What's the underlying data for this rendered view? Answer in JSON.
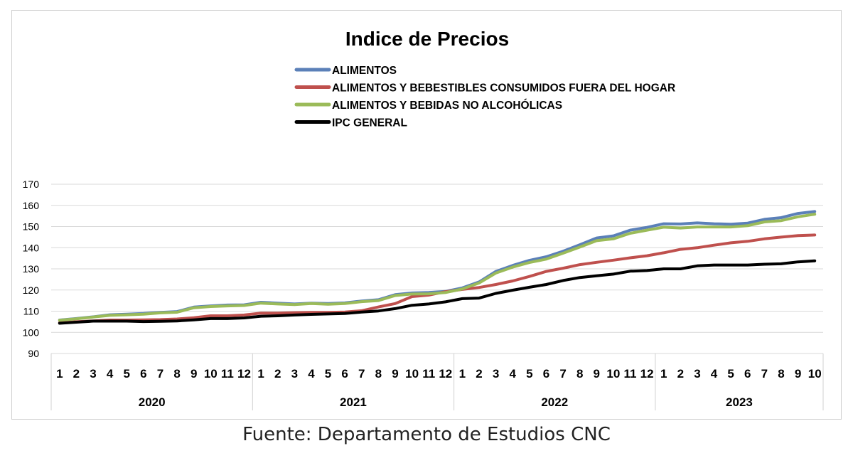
{
  "source_note": "Fuente: Departamento de Estudios CNC",
  "chart_data": {
    "type": "line",
    "title": "Indice de Precios",
    "xlabel": "",
    "ylabel": "",
    "ylim": [
      90,
      170
    ],
    "yticks": [
      90,
      100,
      110,
      120,
      130,
      140,
      150,
      160,
      170
    ],
    "grid": true,
    "legend_position": "top",
    "x_months": [
      "1",
      "2",
      "3",
      "4",
      "5",
      "6",
      "7",
      "8",
      "9",
      "10",
      "11",
      "12",
      "1",
      "2",
      "3",
      "4",
      "5",
      "6",
      "7",
      "8",
      "9",
      "10",
      "11",
      "12",
      "1",
      "2",
      "3",
      "4",
      "5",
      "6",
      "7",
      "8",
      "9",
      "10",
      "11",
      "12",
      "1",
      "2",
      "3",
      "4",
      "5",
      "6",
      "7",
      "8",
      "9",
      "10"
    ],
    "x_years": [
      {
        "label": "2020",
        "count": 12
      },
      {
        "label": "2021",
        "count": 12
      },
      {
        "label": "2022",
        "count": 12
      },
      {
        "label": "2023",
        "count": 10
      }
    ],
    "series": [
      {
        "name": "ALIMENTOS",
        "color": "#5b80b8",
        "values": [
          105.8,
          106.5,
          107.3,
          108.3,
          108.6,
          108.9,
          109.4,
          109.8,
          111.9,
          112.5,
          112.9,
          113.0,
          114.2,
          113.8,
          113.4,
          113.8,
          113.6,
          113.9,
          114.8,
          115.4,
          117.8,
          118.6,
          118.8,
          119.3,
          121.0,
          123.8,
          128.8,
          131.6,
          134.0,
          135.7,
          138.3,
          141.4,
          144.6,
          145.6,
          148.3,
          149.6,
          151.3,
          151.2,
          151.7,
          151.3,
          151.1,
          151.6,
          153.4,
          154.2,
          156.2,
          157.1
        ]
      },
      {
        "name": "ALIMENTOS Y BEBESTIBLES CONSUMIDOS FUERA DEL HOGAR",
        "color": "#bf504d",
        "values": [
          104.5,
          105.0,
          105.4,
          105.8,
          105.8,
          105.9,
          106.0,
          106.3,
          106.9,
          107.8,
          107.8,
          108.2,
          109.1,
          109.1,
          109.3,
          109.4,
          109.4,
          109.6,
          110.2,
          112.0,
          113.6,
          116.9,
          117.6,
          119.2,
          120.3,
          121.2,
          122.6,
          124.3,
          126.4,
          128.8,
          130.3,
          132.0,
          133.1,
          134.1,
          135.2,
          136.2,
          137.6,
          139.2,
          140.0,
          141.2,
          142.3,
          143.0,
          144.2,
          145.0,
          145.7,
          146.0
        ]
      },
      {
        "name": "ALIMENTOS Y BEBIDAS NO ALCOHÓLICAS",
        "color": "#9bbb59",
        "values": [
          105.7,
          106.4,
          107.2,
          108.0,
          108.3,
          108.6,
          109.2,
          109.5,
          111.6,
          112.2,
          112.5,
          112.7,
          113.8,
          113.4,
          113.1,
          113.6,
          113.3,
          113.6,
          114.5,
          115.0,
          117.4,
          118.1,
          118.2,
          118.8,
          120.5,
          123.3,
          128.0,
          130.8,
          133.0,
          134.6,
          137.4,
          140.3,
          143.3,
          144.2,
          146.8,
          148.3,
          149.7,
          149.3,
          149.8,
          149.8,
          149.8,
          150.4,
          152.2,
          152.8,
          154.6,
          155.8
        ]
      },
      {
        "name": "IPC GENERAL",
        "color": "#000000",
        "values": [
          104.3,
          104.8,
          105.3,
          105.3,
          105.3,
          105.1,
          105.2,
          105.4,
          105.9,
          106.5,
          106.5,
          106.8,
          107.6,
          107.8,
          108.2,
          108.5,
          108.7,
          108.9,
          109.6,
          110.1,
          111.2,
          112.8,
          113.4,
          114.4,
          115.9,
          116.2,
          118.4,
          119.9,
          121.3,
          122.6,
          124.5,
          125.9,
          126.7,
          127.5,
          128.9,
          129.2,
          130.0,
          130.0,
          131.4,
          131.8,
          131.8,
          131.8,
          132.2,
          132.4,
          133.3,
          133.8
        ]
      }
    ]
  }
}
